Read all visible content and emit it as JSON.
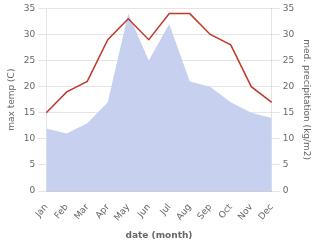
{
  "chart_data": {
    "type": "line",
    "categories": [
      "Jan",
      "Feb",
      "Mar",
      "Apr",
      "May",
      "Jun",
      "Jul",
      "Aug",
      "Sep",
      "Oct",
      "Nov",
      "Dec"
    ],
    "series": [
      {
        "type": "area",
        "axis": "y2",
        "color": "#c8d0f0",
        "values": [
          12,
          11,
          13,
          17,
          34,
          25,
          32,
          21,
          20,
          17,
          15,
          14
        ]
      },
      {
        "type": "line",
        "color": "#c0392b",
        "values": [
          15,
          19,
          21,
          29,
          33,
          29,
          34,
          34,
          30,
          28,
          20,
          17
        ]
      }
    ],
    "xlabel": "date (month)",
    "ylabel": "max temp (C)",
    "y2label": "med. precipitation (kg/m2)",
    "ylim": [
      0,
      35
    ],
    "yticks": [
      0,
      5,
      10,
      15,
      20,
      25,
      30,
      35
    ],
    "y2lim": [
      0,
      35
    ],
    "y2ticks": [
      0,
      5,
      10,
      15,
      20,
      25,
      30,
      35
    ],
    "grid": true
  }
}
